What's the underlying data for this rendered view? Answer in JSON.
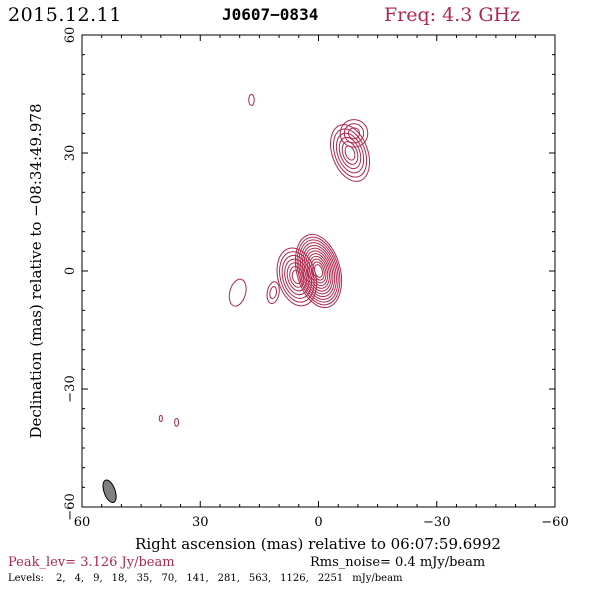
{
  "header": {
    "date": "2015.12.11",
    "source": "J0607−0834",
    "freq": "Freq:  4.3 GHz"
  },
  "footer": {
    "peak": "Peak_lev=  3.126 Jy/beam",
    "rms": "Rms_noise=  0.4 mJy/beam",
    "levels_label": "Levels:",
    "levels": [
      "2,",
      "4,",
      "9,",
      "18,",
      "35,",
      "70,",
      "141,",
      "281,",
      "563,",
      "1126,",
      "2251",
      "mJy/beam"
    ]
  },
  "colors": {
    "contour": "#b0264c",
    "beam": "#808080",
    "axes": "#000000"
  },
  "chart_data": {
    "type": "contour",
    "xlabel": "Right ascension (mas) relative to 06:07:59.6992",
    "ylabel": "Declination (mas) relative to −08:34:49.978",
    "xlim": [
      60,
      -60
    ],
    "ylim": [
      -60,
      60
    ],
    "xticks": [
      60,
      30,
      0,
      -30,
      -60
    ],
    "xtick_labels": [
      "60",
      "30",
      "0",
      "−30",
      "−60"
    ],
    "yticks": [
      -60,
      -30,
      0,
      30,
      60
    ],
    "ytick_labels": [
      "−60",
      "−30",
      "0",
      "30",
      "60"
    ],
    "levels_mJy": [
      2,
      4,
      9,
      18,
      35,
      70,
      141,
      281,
      563,
      1126,
      2251
    ],
    "peak_Jy_per_beam": 3.126,
    "rms_mJy_per_beam": 0.4,
    "components": [
      {
        "x": 0,
        "y": 0,
        "n": 12,
        "rx": 5.5,
        "ry": 9.5,
        "rot": -15
      },
      {
        "x": 5.5,
        "y": -1.5,
        "n": 7,
        "rx": 4.8,
        "ry": 7.5,
        "rot": -15
      },
      {
        "x": -8,
        "y": 30,
        "n": 6,
        "rx": 4.5,
        "ry": 7.5,
        "rot": -20
      },
      {
        "x": -9,
        "y": 35,
        "n": 3,
        "rx": 3.5,
        "ry": 3.5,
        "rot": 0
      },
      {
        "x": 11.5,
        "y": -5.5,
        "n": 2,
        "rx": 1.5,
        "ry": 2.8,
        "rot": 10
      },
      {
        "x": 20.5,
        "y": -5.5,
        "n": 1,
        "rx": 2.0,
        "ry": 3.5,
        "rot": 15
      },
      {
        "x": 17,
        "y": 43.5,
        "n": 1,
        "rx": 0.7,
        "ry": 1.4,
        "rot": 0
      },
      {
        "x": 40,
        "y": -37.5,
        "n": 1,
        "rx": 0.4,
        "ry": 0.8,
        "rot": 0
      },
      {
        "x": 36,
        "y": -38.5,
        "n": 1,
        "rx": 0.5,
        "ry": 1.0,
        "rot": 0
      }
    ],
    "beam": {
      "x": 53,
      "y": -56,
      "major": 6.0,
      "minor": 2.8,
      "pa": 20
    }
  }
}
